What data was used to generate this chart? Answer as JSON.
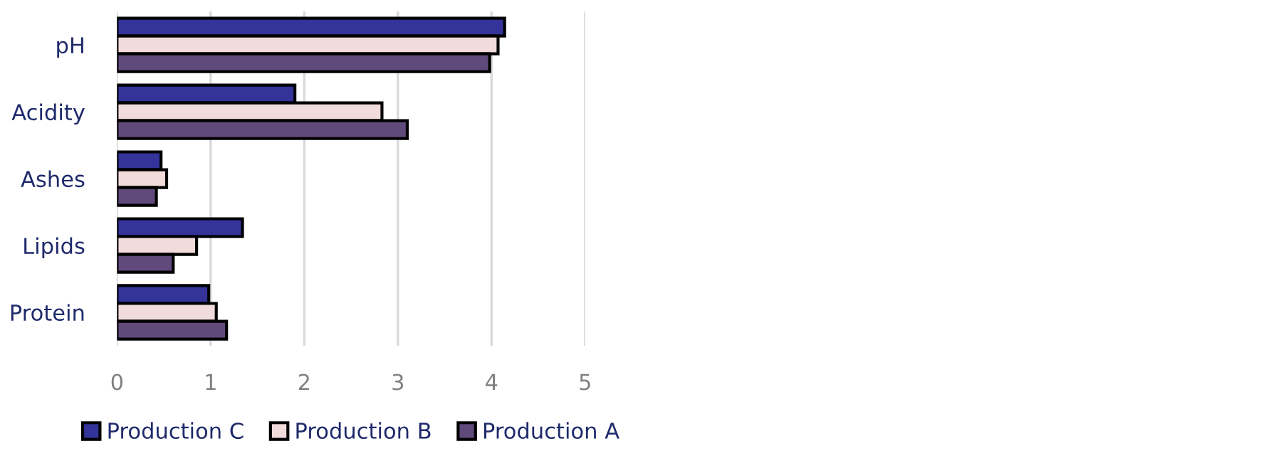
{
  "chart_data": {
    "type": "bar",
    "orientation": "horizontal",
    "categories": [
      "pH",
      "Acidity",
      "Ashes",
      "Lipids",
      "Protein"
    ],
    "series": [
      {
        "name": "Production C",
        "color": "#333399",
        "values": [
          4.14,
          1.9,
          0.47,
          1.34,
          0.98
        ]
      },
      {
        "name": "Production B",
        "color": "#f2dcdb",
        "values": [
          4.07,
          2.83,
          0.53,
          0.85,
          1.06
        ]
      },
      {
        "name": "Production A",
        "color": "#604a7b",
        "values": [
          3.98,
          3.1,
          0.42,
          0.6,
          1.17
        ]
      }
    ],
    "xlim": [
      0,
      5
    ],
    "xticks": [
      0,
      1,
      2,
      3,
      4,
      5
    ],
    "grid": "x",
    "legend": "bottom"
  }
}
